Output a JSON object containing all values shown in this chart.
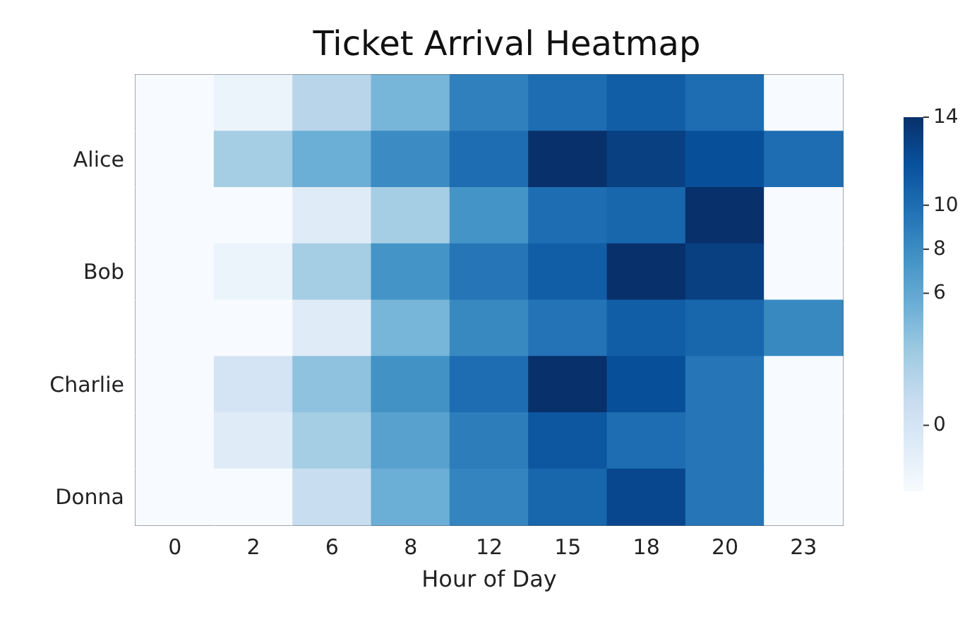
{
  "chart_data": {
    "type": "heatmap",
    "title": "Ticket Arrival Heatmap",
    "xlabel": "Hour of Day",
    "categories": [
      "0",
      "2",
      "6",
      "8",
      "12",
      "15",
      "18",
      "20",
      "23"
    ],
    "y_categories": [
      null,
      "Alice",
      null,
      "Bob",
      null,
      "Charlie",
      null,
      "Donna"
    ],
    "cells": [
      [
        -3,
        -2,
        2,
        5,
        8.8,
        10,
        11,
        10,
        -3
      ],
      [
        -3,
        3,
        5.5,
        8,
        10,
        14,
        13,
        12,
        10
      ],
      [
        -3,
        -3,
        -1,
        3,
        7.5,
        10,
        10.5,
        14,
        -3
      ],
      [
        -3,
        -2,
        3,
        7.5,
        9.5,
        11,
        14,
        13,
        -3
      ],
      [
        -3,
        -3,
        -1,
        5,
        8.2,
        9.6,
        11,
        10.5,
        8.2
      ],
      [
        -3,
        0,
        4,
        7.6,
        10,
        14,
        12,
        9.5,
        -3
      ],
      [
        -3,
        -1,
        3,
        6.5,
        9,
        11.5,
        10,
        9.5,
        -3
      ],
      [
        -3,
        -3,
        1,
        5.5,
        8.5,
        10.5,
        12.5,
        9.5,
        -3
      ]
    ],
    "clim": [
      -3,
      14
    ],
    "cticks": [
      0,
      6,
      8,
      10,
      14
    ]
  }
}
